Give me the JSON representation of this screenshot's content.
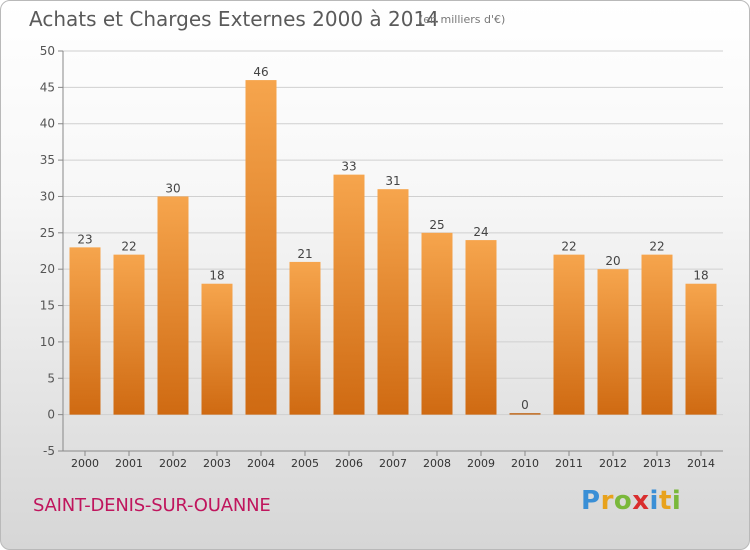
{
  "title": "Achats et Charges Externes 2000 à 2014",
  "unit_note": "(en milliers d'€)",
  "city": "SAINT-DENIS-SUR-OUANNE",
  "logo": {
    "p": "P",
    "r": "r",
    "o": "o",
    "x": "x",
    "i": "i",
    "t": "t",
    "z": "i"
  },
  "colors": {
    "bar_top": "#f6a54d",
    "bar_bottom": "#cf6a12",
    "title": "#5a5a5a",
    "city": "#c0155d"
  },
  "chart_data": {
    "type": "bar",
    "title": "Achats et Charges Externes 2000 à 2014",
    "xlabel": "",
    "ylabel": "",
    "ylim": [
      -5,
      50
    ],
    "yticks": [
      -5,
      0,
      5,
      10,
      15,
      20,
      25,
      30,
      35,
      40,
      45,
      50
    ],
    "grid": true,
    "categories": [
      "2000",
      "2001",
      "2002",
      "2003",
      "2004",
      "2005",
      "2006",
      "2007",
      "2008",
      "2009",
      "2010",
      "2011",
      "2012",
      "2013",
      "2014"
    ],
    "values": [
      23,
      22,
      30,
      18,
      46,
      21,
      33,
      31,
      25,
      24,
      0,
      22,
      20,
      22,
      18
    ]
  }
}
